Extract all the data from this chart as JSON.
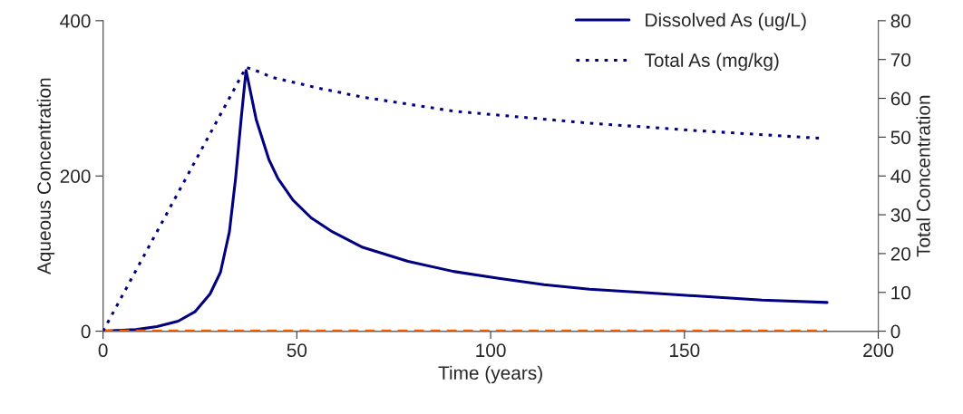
{
  "chart_data": {
    "type": "line",
    "xlabel": "Time (years)",
    "ylabel": "Aqueous Concentration",
    "y2label": "Total Concentration",
    "xlim": [
      0,
      200
    ],
    "xticks": [
      0,
      50,
      100,
      150,
      200
    ],
    "ylim": [
      0,
      400
    ],
    "yticks": [
      0,
      200,
      400
    ],
    "y2lim": [
      0,
      80
    ],
    "y2ticks": [
      0,
      10,
      20,
      30,
      40,
      50,
      60,
      70,
      80
    ],
    "grid": false,
    "legend": "top right",
    "marker": "none",
    "series": [
      {
        "name": "Dissolved As (ug/L)",
        "color": "#000080",
        "line_style": "solid",
        "x": [
          0,
          8.4,
          13.9,
          19.4,
          23.7,
          27.6,
          30.3,
          32.6,
          34.2,
          35.7,
          36.9,
          39.5,
          42.8,
          45.1,
          49,
          53.7,
          59.2,
          67,
          78.7,
          90.4,
          102.1,
          113.8,
          125.5,
          138.8,
          154.4,
          170,
          186.8
        ],
        "values": [
          0,
          2,
          6,
          13,
          25,
          48,
          76,
          128,
          197,
          277,
          336,
          273,
          221,
          197,
          169,
          146,
          128,
          108,
          90,
          77,
          68,
          60,
          54,
          50,
          45,
          40,
          37
        ]
      },
      {
        "name": "Total As (mg/kg)",
        "color": "#000080",
        "line_style": "dotted",
        "axis": "y2",
        "x": [
          0,
          36.9,
          40.4,
          43.6,
          55.3,
          67,
          90.4,
          125.5,
          154.4,
          185.2
        ],
        "values": [
          0,
          68,
          66.8,
          65.4,
          62.7,
          60.3,
          56.7,
          53.6,
          51.6,
          49.7
        ]
      },
      {
        "color": "#ff6600",
        "line_style": "dashed",
        "x": [
          0,
          186.8
        ],
        "values": [
          0,
          0
        ]
      }
    ]
  }
}
